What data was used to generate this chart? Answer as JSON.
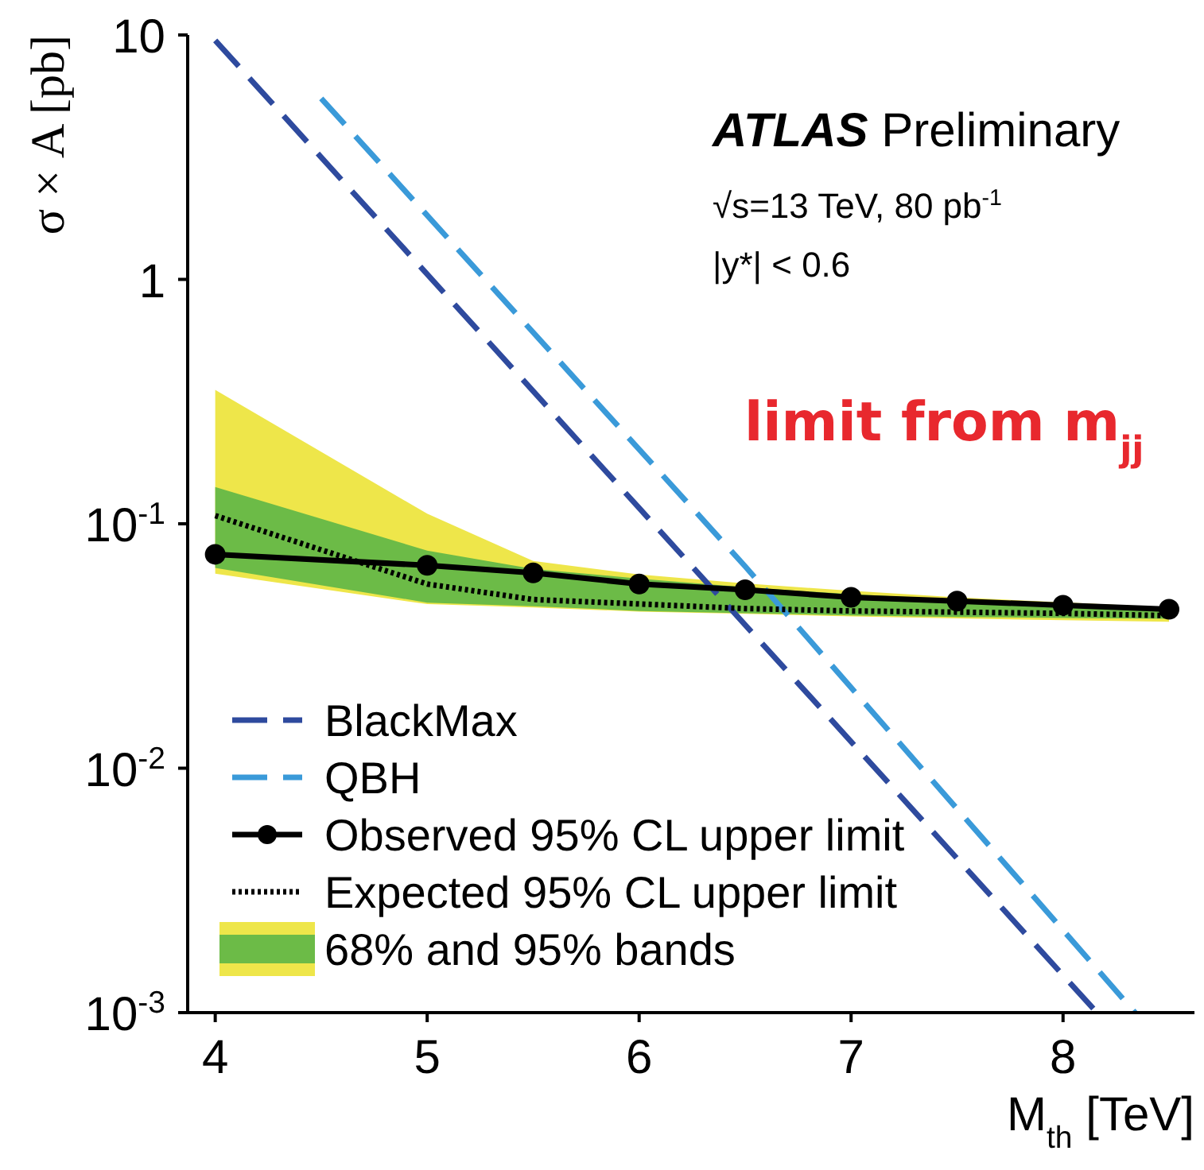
{
  "chart_data": {
    "type": "line",
    "xlabel": "M$_{th}$ [TeV]",
    "ylabel": "σ × A [pb]",
    "xlim": [
      3.87,
      8.62
    ],
    "xticks": [
      4,
      5,
      6,
      7,
      8
    ],
    "ylim": [
      0.001,
      10
    ],
    "yticks": [
      {
        "value": 0.001,
        "label": "10$^{-3}$"
      },
      {
        "value": 0.01,
        "label": "10$^{-2}$"
      },
      {
        "value": 0.1,
        "label": "10$^{-1}$"
      },
      1,
      10
    ],
    "log": "y",
    "legend": "bottom left",
    "annotations": [
      "ATLAS Preliminary",
      "√s=13 TeV, 80 pb$^{-1}$",
      "|y*| < 0.6",
      "limit from m$_{jj}$"
    ],
    "series": [
      {
        "name": "BlackMax",
        "color": "#2e4a9e",
        "line_style": "dashed",
        "marker": "none",
        "x": [
          4,
          6,
          8.16
        ],
        "values": [
          9.5,
          0.116,
          0.001
        ]
      },
      {
        "name": "QBH",
        "color": "#3a9ad9",
        "line_style": "dashed",
        "marker": "none",
        "x": [
          4.5,
          6.5,
          8.34
        ],
        "values": [
          5.5,
          0.067,
          0.001
        ]
      },
      {
        "name": "Observed 95% CL upper limit",
        "color": "#000000",
        "line_style": "solid",
        "marker": "circle",
        "x": [
          4,
          5,
          5.5,
          6,
          6.5,
          7,
          7.5,
          8,
          8.5
        ],
        "values": [
          0.075,
          0.0676,
          0.063,
          0.0567,
          0.0537,
          0.05,
          0.0483,
          0.0464,
          0.0447
        ]
      },
      {
        "name": "Expected 95% CL upper limit",
        "color": "#000000",
        "line_style": "dotted",
        "marker": "none",
        "x": [
          4,
          5,
          5.5,
          6,
          6.5,
          7,
          7.5,
          8,
          8.5
        ],
        "values": [
          0.108,
          0.0567,
          0.049,
          0.047,
          0.045,
          0.044,
          0.0435,
          0.043,
          0.0421
        ]
      },
      {
        "type": "area",
        "color": "#eee64a",
        "x": [
          4,
          5,
          5.5,
          6,
          6.5,
          7,
          7.5,
          8,
          8.5
        ],
        "values": [
          null,
          null,
          null,
          null,
          null,
          null,
          null,
          null,
          null
        ],
        "lower": [
          0.0625,
          0.0469,
          0.0455,
          0.0437,
          0.0428,
          0.0418,
          0.041,
          0.0403,
          0.0397
        ],
        "upper": [
          0.353,
          0.11,
          0.0705,
          0.062,
          0.057,
          0.0532,
          0.05,
          0.0477,
          0.0455
        ]
      },
      {
        "name": "68% and 95% bands",
        "type": "area",
        "color": "#6cbb47",
        "x": [
          4,
          5,
          5.5,
          6,
          6.5,
          7,
          7.5,
          8,
          8.5
        ],
        "values": [
          null,
          null,
          null,
          null,
          null,
          null,
          null,
          null,
          null
        ],
        "lower": [
          0.066,
          0.0476,
          0.046,
          0.044,
          0.0431,
          0.0422,
          0.0416,
          0.0412,
          0.0409
        ],
        "upper": [
          0.1415,
          0.0777,
          0.0654,
          0.0597,
          0.055,
          0.0515,
          0.049,
          0.0467,
          0.0447
        ]
      }
    ]
  }
}
